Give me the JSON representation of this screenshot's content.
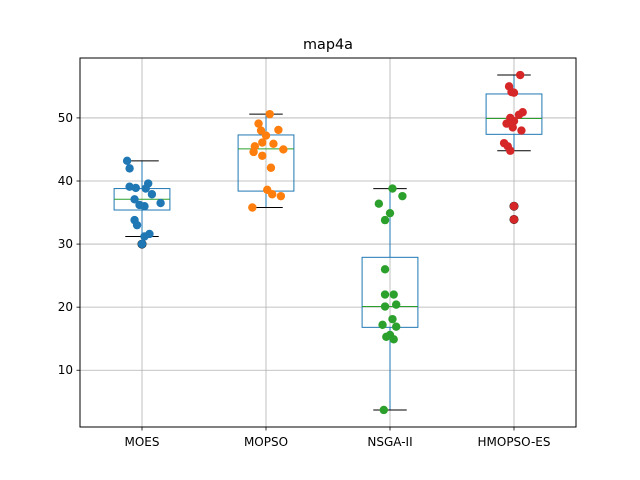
{
  "chart_data": {
    "type": "box",
    "title": "map4a",
    "xlabel": "",
    "ylabel": "",
    "categories": [
      "MOES",
      "MOPSO",
      "NSGA-II",
      "HMOPSO-ES"
    ],
    "ylim": [
      1,
      59.5
    ],
    "yticks": [
      10,
      20,
      30,
      40,
      50
    ],
    "grid": true,
    "colors": [
      "#1f77b4",
      "#ff7f0e",
      "#2ca02c",
      "#d62728"
    ],
    "box_color": "#1f77b4",
    "median_color": "#2ca02c",
    "boxes": [
      {
        "q1": 35.4,
        "median": 37.1,
        "q3": 38.8,
        "whisker_low": 31.2,
        "whisker_high": 43.2,
        "outliers": [
          30.0
        ]
      },
      {
        "q1": 38.4,
        "median": 45.1,
        "q3": 47.3,
        "whisker_low": 35.8,
        "whisker_high": 50.6,
        "outliers": []
      },
      {
        "q1": 16.8,
        "median": 20.1,
        "q3": 27.9,
        "whisker_low": 3.7,
        "whisker_high": 38.8,
        "outliers": []
      },
      {
        "q1": 47.4,
        "median": 49.9,
        "q3": 53.8,
        "whisker_low": 44.8,
        "whisker_high": 56.8,
        "outliers": [
          36.0,
          33.9
        ]
      }
    ],
    "points": [
      {
        "values": [
          43.2,
          42.0,
          39.1,
          38.9,
          39.6,
          38.8,
          37.9,
          37.1,
          36.5,
          36.0,
          36.2,
          33.8,
          33.0,
          31.6,
          31.2,
          30.0
        ],
        "offsets": [
          -0.12,
          -0.1,
          -0.1,
          -0.05,
          0.05,
          0.03,
          0.08,
          -0.06,
          0.15,
          0.02,
          -0.02,
          -0.06,
          -0.04,
          0.06,
          0.02,
          0.0
        ]
      },
      {
        "values": [
          50.6,
          49.1,
          48.1,
          48.0,
          47.2,
          46.1,
          45.5,
          45.9,
          45.0,
          44.6,
          44.0,
          42.1,
          38.6,
          37.9,
          37.6,
          35.8
        ],
        "offsets": [
          0.03,
          -0.06,
          0.1,
          -0.04,
          0.0,
          -0.03,
          -0.09,
          0.06,
          0.14,
          -0.1,
          -0.03,
          0.04,
          0.01,
          0.05,
          0.12,
          -0.11
        ]
      },
      {
        "values": [
          38.8,
          37.6,
          36.4,
          34.9,
          33.8,
          26.0,
          22.0,
          22.0,
          20.4,
          20.1,
          18.1,
          17.2,
          16.9,
          15.6,
          15.3,
          14.9,
          3.7
        ],
        "offsets": [
          0.02,
          0.1,
          -0.09,
          0.0,
          -0.04,
          -0.04,
          -0.04,
          0.03,
          0.05,
          -0.04,
          0.02,
          -0.06,
          0.05,
          0.0,
          -0.03,
          0.03,
          -0.05
        ]
      },
      {
        "values": [
          56.8,
          55.0,
          54.1,
          54.0,
          50.9,
          50.5,
          50.0,
          49.5,
          49.1,
          48.5,
          48.0,
          46.0,
          45.5,
          44.8,
          36.0,
          33.9
        ],
        "offsets": [
          0.05,
          -0.04,
          -0.02,
          0.0,
          0.07,
          0.04,
          -0.03,
          0.0,
          -0.06,
          -0.01,
          0.06,
          -0.08,
          -0.05,
          -0.03,
          0.0,
          0.0
        ]
      }
    ]
  }
}
